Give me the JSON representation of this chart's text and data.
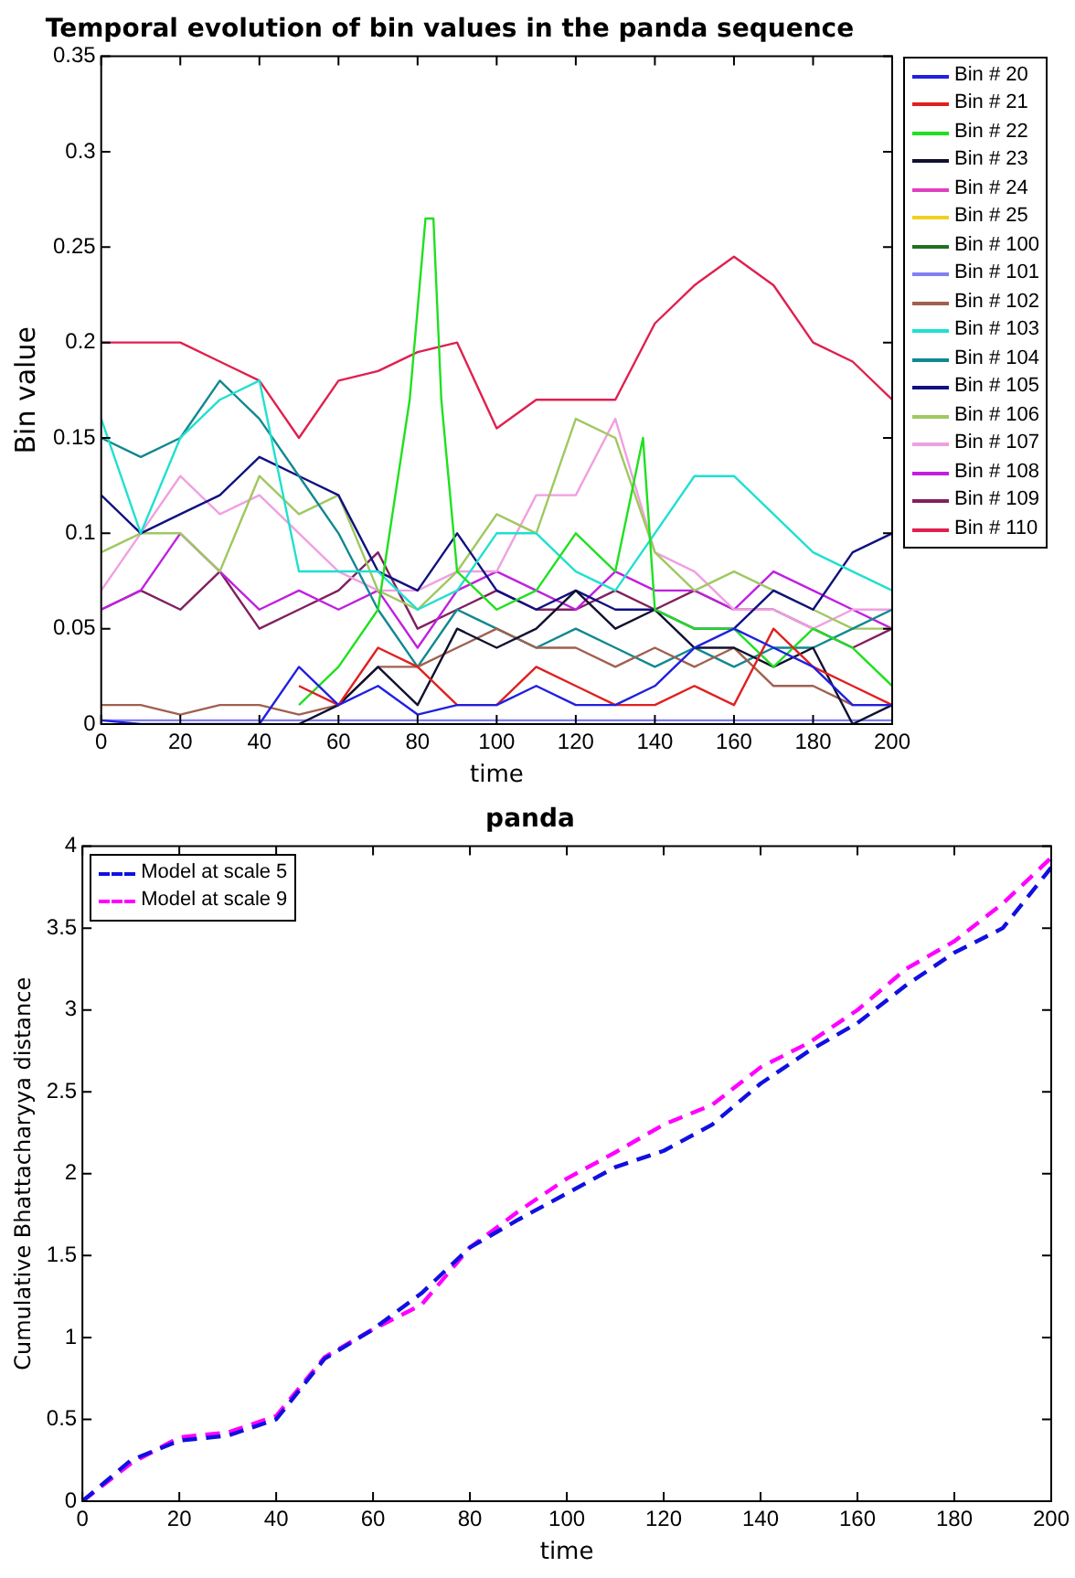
{
  "chart_data": [
    {
      "type": "line",
      "title": "Temporal evolution of bin values in the panda sequence",
      "xlabel": "time",
      "ylabel": "Bin value",
      "x": [
        0,
        10,
        20,
        30,
        40,
        50,
        60,
        70,
        80,
        90,
        100,
        110,
        120,
        130,
        140,
        150,
        160,
        170,
        180,
        190,
        200
      ],
      "xlim": [
        0,
        200
      ],
      "xticks": [
        0,
        20,
        40,
        60,
        80,
        100,
        120,
        140,
        160,
        180,
        200
      ],
      "ylim": [
        0,
        0.35
      ],
      "yticks": [
        0,
        0.05,
        0.1,
        0.15,
        0.2,
        0.25,
        0.3,
        0.35
      ],
      "legend": "right",
      "series": [
        {
          "name": "Bin # 20",
          "color": "#2020e0",
          "values": [
            0.002,
            0,
            0,
            0,
            0,
            0.03,
            0.01,
            0.02,
            0.005,
            0.01,
            0.01,
            0.02,
            0.01,
            0.01,
            0.02,
            0.04,
            0.05,
            0.04,
            0.03,
            0.01,
            0.01
          ]
        },
        {
          "name": "Bin # 21",
          "color": "#e02020",
          "values": [
            null,
            null,
            null,
            null,
            null,
            0.02,
            0.01,
            0.04,
            0.03,
            0.01,
            0.01,
            0.03,
            0.02,
            0.01,
            0.01,
            0.02,
            0.01,
            0.05,
            0.03,
            0.02,
            0.01
          ]
        },
        {
          "name": "Bin # 22",
          "color": "#20e020",
          "x": [
            50,
            60,
            70,
            78,
            82,
            84,
            86,
            90,
            100,
            110,
            120,
            130,
            137,
            140,
            150,
            160,
            170,
            180,
            190,
            200
          ],
          "values": [
            0.01,
            0.03,
            0.06,
            0.17,
            0.265,
            0.265,
            0.17,
            0.08,
            0.06,
            0.07,
            0.1,
            0.08,
            0.15,
            0.06,
            0.05,
            0.05,
            0.03,
            0.05,
            0.04,
            0.02
          ]
        },
        {
          "name": "Bin # 23",
          "color": "#101030",
          "values": [
            null,
            null,
            null,
            null,
            null,
            0,
            0.01,
            0.03,
            0.01,
            0.05,
            0.04,
            0.05,
            0.07,
            0.05,
            0.06,
            0.04,
            0.04,
            0.03,
            0.04,
            0,
            0.01
          ]
        },
        {
          "name": "Bin # 24",
          "color": "#e040c0",
          "values": [
            null,
            null,
            null,
            null,
            null,
            null,
            null,
            null,
            null,
            null,
            null,
            null,
            null,
            null,
            null,
            null,
            null,
            null,
            null,
            null,
            null
          ]
        },
        {
          "name": "Bin # 25",
          "color": "#f0d020",
          "values": [
            null,
            null,
            null,
            null,
            null,
            null,
            null,
            null,
            null,
            null,
            null,
            null,
            null,
            null,
            null,
            null,
            null,
            null,
            null,
            null,
            null
          ]
        },
        {
          "name": "Bin # 100",
          "color": "#207020",
          "values": [
            null,
            null,
            null,
            null,
            null,
            null,
            null,
            null,
            null,
            null,
            null,
            null,
            null,
            null,
            null,
            null,
            null,
            null,
            null,
            null,
            null
          ]
        },
        {
          "name": "Bin # 101",
          "color": "#8080f0",
          "values": [
            0.002,
            0.002,
            0.002,
            0.002,
            0.002,
            0.002,
            0.002,
            0.002,
            0.002,
            0.002,
            0.002,
            0.002,
            0.002,
            0.002,
            0.002,
            0.002,
            0.002,
            0.002,
            0.002,
            0.002,
            0.002
          ]
        },
        {
          "name": "Bin # 102",
          "color": "#a06050",
          "values": [
            0.01,
            0.01,
            0.005,
            0.01,
            0.01,
            0.005,
            0.01,
            0.03,
            0.03,
            0.04,
            0.05,
            0.04,
            0.04,
            0.03,
            0.04,
            0.03,
            0.04,
            0.02,
            0.02,
            0.01,
            0.01
          ]
        },
        {
          "name": "Bin # 103",
          "color": "#20e0d0",
          "values": [
            0.16,
            0.1,
            0.15,
            0.17,
            0.18,
            0.08,
            0.08,
            0.08,
            0.06,
            0.07,
            0.1,
            0.1,
            0.08,
            0.07,
            0.1,
            0.13,
            0.13,
            0.11,
            0.09,
            0.08,
            0.07
          ]
        },
        {
          "name": "Bin # 104",
          "color": "#108890",
          "values": [
            0.15,
            0.14,
            0.15,
            0.18,
            0.16,
            0.13,
            0.1,
            0.06,
            0.03,
            0.06,
            0.05,
            0.04,
            0.05,
            0.04,
            0.03,
            0.04,
            0.03,
            0.04,
            0.04,
            0.05,
            0.06
          ]
        },
        {
          "name": "Bin # 105",
          "color": "#101080",
          "values": [
            0.12,
            0.1,
            0.11,
            0.12,
            0.14,
            0.13,
            0.12,
            0.08,
            0.07,
            0.1,
            0.07,
            0.06,
            0.07,
            0.06,
            0.06,
            0.05,
            0.05,
            0.07,
            0.06,
            0.09,
            0.1
          ]
        },
        {
          "name": "Bin # 106",
          "color": "#a0c860",
          "values": [
            0.09,
            0.1,
            0.1,
            0.08,
            0.13,
            0.11,
            0.12,
            0.07,
            0.06,
            0.08,
            0.11,
            0.1,
            0.16,
            0.15,
            0.09,
            0.07,
            0.08,
            0.07,
            0.06,
            0.05,
            0.05
          ]
        },
        {
          "name": "Bin # 107",
          "color": "#f0a0e0",
          "values": [
            0.07,
            0.1,
            0.13,
            0.11,
            0.12,
            0.1,
            0.08,
            0.07,
            0.07,
            0.08,
            0.08,
            0.12,
            0.12,
            0.16,
            0.09,
            0.08,
            0.06,
            0.06,
            0.05,
            0.06,
            0.06
          ]
        },
        {
          "name": "Bin # 108",
          "color": "#c020e0",
          "values": [
            0.06,
            0.07,
            0.1,
            0.08,
            0.06,
            0.07,
            0.06,
            0.07,
            0.04,
            0.07,
            0.08,
            0.07,
            0.06,
            0.08,
            0.07,
            0.07,
            0.06,
            0.08,
            0.07,
            0.06,
            0.05
          ]
        },
        {
          "name": "Bin # 109",
          "color": "#802060",
          "values": [
            0.06,
            0.07,
            0.06,
            0.08,
            0.05,
            0.06,
            0.07,
            0.09,
            0.05,
            0.06,
            0.07,
            0.06,
            0.06,
            0.07,
            0.06,
            0.07,
            0.06,
            0.06,
            0.05,
            0.04,
            0.05
          ]
        },
        {
          "name": "Bin # 110",
          "color": "#e0204f",
          "values": [
            0.2,
            0.2,
            0.2,
            0.19,
            0.18,
            0.15,
            0.18,
            0.185,
            0.195,
            0.2,
            0.155,
            0.17,
            0.17,
            0.17,
            0.21,
            0.23,
            0.245,
            0.23,
            0.2,
            0.19,
            0.17
          ]
        }
      ]
    },
    {
      "type": "line",
      "title": "panda",
      "xlabel": "time",
      "ylabel": "Cumulative Bhattacharyya distance",
      "x": [
        0,
        10,
        20,
        30,
        40,
        50,
        60,
        70,
        80,
        90,
        100,
        110,
        120,
        130,
        140,
        150,
        160,
        170,
        180,
        190,
        200
      ],
      "xlim": [
        0,
        200
      ],
      "xticks": [
        0,
        20,
        40,
        60,
        80,
        100,
        120,
        140,
        160,
        180,
        200
      ],
      "ylim": [
        0,
        4
      ],
      "yticks": [
        0,
        0.5,
        1,
        1.5,
        2,
        2.5,
        3,
        3.5,
        4
      ],
      "legend": "top left",
      "line_style": "dashed",
      "series": [
        {
          "name": "Model at scale 5",
          "color": "#1010e0",
          "values": [
            0,
            0.25,
            0.37,
            0.4,
            0.5,
            0.87,
            1.05,
            1.27,
            1.55,
            1.72,
            1.88,
            2.04,
            2.14,
            2.3,
            2.55,
            2.75,
            2.92,
            3.15,
            3.35,
            3.5,
            3.87
          ]
        },
        {
          "name": "Model at scale 9",
          "color": "#ff00ff",
          "values": [
            0,
            0.23,
            0.39,
            0.42,
            0.52,
            0.88,
            1.05,
            1.2,
            1.55,
            1.77,
            1.97,
            2.13,
            2.3,
            2.42,
            2.65,
            2.8,
            3.0,
            3.25,
            3.42,
            3.65,
            3.93
          ]
        }
      ]
    }
  ]
}
